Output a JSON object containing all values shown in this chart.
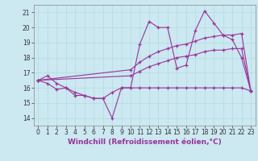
{
  "xlabel": "Windchill (Refroidissement éolien,°C)",
  "background_color": "#cce8f0",
  "line_color": "#993399",
  "ylim": [
    13.5,
    21.5
  ],
  "xlim": [
    -0.5,
    23.5
  ],
  "yticks": [
    14,
    15,
    16,
    17,
    18,
    19,
    20,
    21
  ],
  "xticks": [
    0,
    1,
    2,
    3,
    4,
    5,
    6,
    7,
    8,
    9,
    10,
    11,
    12,
    13,
    14,
    15,
    16,
    17,
    18,
    19,
    20,
    21,
    22,
    23
  ],
  "s1_x": [
    0,
    1,
    2,
    3,
    4,
    5,
    6,
    7,
    8,
    9,
    10,
    11,
    12,
    13,
    14,
    15,
    16,
    17,
    18,
    19,
    20,
    21,
    22,
    23
  ],
  "s1_y": [
    16.5,
    16.8,
    16.3,
    16.0,
    15.7,
    15.5,
    15.3,
    15.3,
    14.0,
    16.0,
    16.0,
    18.9,
    20.4,
    20.0,
    20.0,
    17.3,
    17.5,
    19.8,
    21.1,
    20.3,
    19.5,
    19.2,
    18.0,
    15.8
  ],
  "s2_x": [
    0,
    1,
    2,
    3,
    4,
    5,
    6,
    7,
    8,
    9,
    10,
    11,
    12,
    13,
    14,
    15,
    16,
    17,
    18,
    19,
    20,
    21,
    22,
    23
  ],
  "s2_y": [
    16.5,
    16.3,
    15.9,
    16.0,
    15.5,
    15.5,
    15.3,
    15.3,
    15.7,
    16.0,
    16.0,
    16.0,
    16.0,
    16.0,
    16.0,
    16.0,
    16.0,
    16.0,
    16.0,
    16.0,
    16.0,
    16.0,
    16.0,
    15.8
  ],
  "s3_x": [
    0,
    10,
    11,
    12,
    13,
    14,
    15,
    16,
    17,
    18,
    19,
    20,
    21,
    22,
    23
  ],
  "s3_y": [
    16.5,
    17.2,
    17.7,
    18.1,
    18.4,
    18.6,
    18.8,
    18.9,
    19.1,
    19.3,
    19.4,
    19.5,
    19.5,
    19.6,
    15.8
  ],
  "s4_x": [
    0,
    10,
    11,
    12,
    13,
    14,
    15,
    16,
    17,
    18,
    19,
    20,
    21,
    22,
    23
  ],
  "s4_y": [
    16.5,
    16.8,
    17.1,
    17.4,
    17.6,
    17.8,
    18.0,
    18.1,
    18.2,
    18.4,
    18.5,
    18.5,
    18.6,
    18.6,
    15.8
  ],
  "tick_fontsize": 5.5,
  "xlabel_fontsize": 6.5,
  "line_width": 0.8,
  "marker_size": 2.8,
  "grid_color": "#aad8e0",
  "spine_color": "#888888"
}
